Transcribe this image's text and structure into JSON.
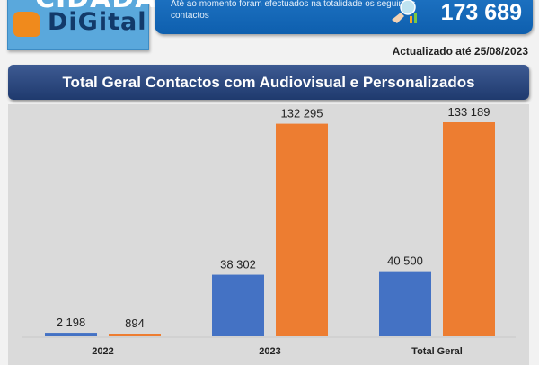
{
  "logo": {
    "line1": "CIDADÃO",
    "line2": "DIGITAL"
  },
  "banner": {
    "text": "Até ao momento foram efectuados na totalidade os seguintes contactos",
    "total": "173 689",
    "icon": "chart-magnifier-icon"
  },
  "updated": "Actualizado até 25/08/2023",
  "colors": {
    "audiovisual": "#4472c4",
    "personalizados": "#ed7d31"
  },
  "chart_data": {
    "type": "bar",
    "title": "Total Geral Contactos com Audiovisual e Personalizados",
    "categories": [
      "2022",
      "2023",
      "Total Geral"
    ],
    "series": [
      {
        "name": "Audiovisual",
        "values": [
          2198,
          38302,
          40500
        ],
        "labels": [
          "2 198",
          "38 302",
          "40 500"
        ]
      },
      {
        "name": "Personalizados",
        "values": [
          894,
          132295,
          133189
        ],
        "labels": [
          "894",
          "132 295",
          "133 189"
        ]
      }
    ],
    "ylim": [
      0,
      140000
    ],
    "grid": false,
    "legend": "none"
  }
}
